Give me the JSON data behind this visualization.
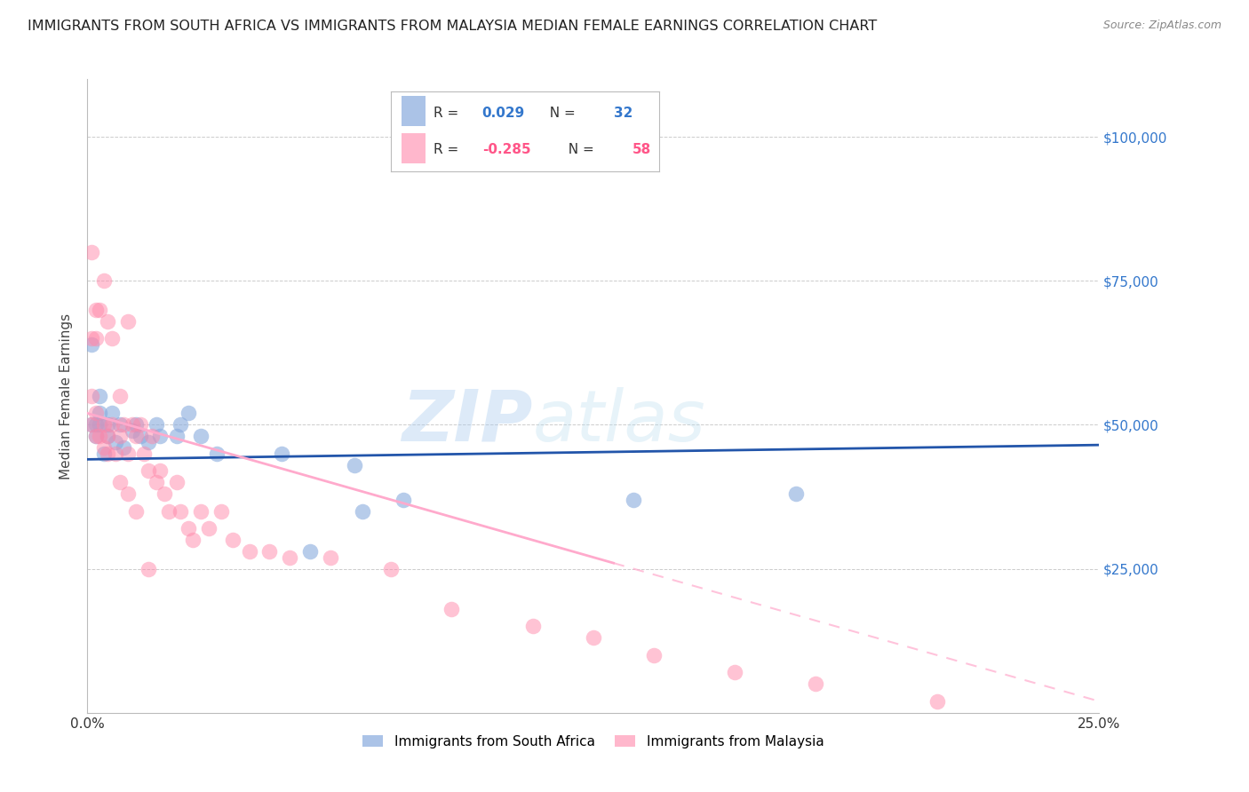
{
  "title": "IMMIGRANTS FROM SOUTH AFRICA VS IMMIGRANTS FROM MALAYSIA MEDIAN FEMALE EARNINGS CORRELATION CHART",
  "source": "Source: ZipAtlas.com",
  "ylabel": "Median Female Earnings",
  "yticks": [
    0,
    25000,
    50000,
    75000,
    100000
  ],
  "ytick_labels": [
    "",
    "$25,000",
    "$50,000",
    "$75,000",
    "$100,000"
  ],
  "xlim": [
    0.0,
    0.25
  ],
  "ylim": [
    0,
    110000
  ],
  "watermark_zip": "ZIP",
  "watermark_atlas": "atlas",
  "color_blue": "#88AADD",
  "color_pink": "#FF88AA",
  "color_trendline_blue": "#2255AA",
  "color_trendline_pink": "#FFAACC",
  "background_color": "#FFFFFF",
  "grid_color": "#CCCCCC",
  "title_fontsize": 11.5,
  "axis_label_fontsize": 11,
  "tick_fontsize": 11,
  "blue_r": "0.029",
  "blue_n": "32",
  "pink_r": "-0.285",
  "pink_n": "58",
  "blue_scatter_x": [
    0.001,
    0.001,
    0.002,
    0.002,
    0.003,
    0.003,
    0.003,
    0.004,
    0.005,
    0.005,
    0.006,
    0.007,
    0.008,
    0.009,
    0.011,
    0.012,
    0.013,
    0.015,
    0.017,
    0.018,
    0.022,
    0.023,
    0.025,
    0.028,
    0.032,
    0.048,
    0.055,
    0.066,
    0.068,
    0.078,
    0.135,
    0.175
  ],
  "blue_scatter_y": [
    50000,
    64000,
    50000,
    48000,
    50000,
    52000,
    55000,
    45000,
    48000,
    50000,
    52000,
    47000,
    50000,
    46000,
    49000,
    50000,
    48000,
    47000,
    50000,
    48000,
    48000,
    50000,
    52000,
    48000,
    45000,
    45000,
    28000,
    43000,
    35000,
    37000,
    37000,
    38000
  ],
  "pink_scatter_x": [
    0.001,
    0.001,
    0.001,
    0.002,
    0.002,
    0.002,
    0.003,
    0.003,
    0.004,
    0.004,
    0.005,
    0.005,
    0.006,
    0.006,
    0.007,
    0.008,
    0.008,
    0.009,
    0.01,
    0.01,
    0.011,
    0.012,
    0.013,
    0.014,
    0.015,
    0.016,
    0.017,
    0.018,
    0.019,
    0.02,
    0.022,
    0.023,
    0.025,
    0.026,
    0.028,
    0.03,
    0.033,
    0.036,
    0.04,
    0.045,
    0.05,
    0.06,
    0.075,
    0.09,
    0.11,
    0.125,
    0.14,
    0.16,
    0.18,
    0.21,
    0.001,
    0.002,
    0.004,
    0.005,
    0.008,
    0.01,
    0.012,
    0.015
  ],
  "pink_scatter_y": [
    80000,
    65000,
    50000,
    70000,
    65000,
    48000,
    70000,
    48000,
    75000,
    50000,
    68000,
    48000,
    65000,
    50000,
    45000,
    55000,
    48000,
    50000,
    68000,
    45000,
    50000,
    48000,
    50000,
    45000,
    42000,
    48000,
    40000,
    42000,
    38000,
    35000,
    40000,
    35000,
    32000,
    30000,
    35000,
    32000,
    35000,
    30000,
    28000,
    28000,
    27000,
    27000,
    25000,
    18000,
    15000,
    13000,
    10000,
    7000,
    5000,
    2000,
    55000,
    52000,
    46000,
    45000,
    40000,
    38000,
    35000,
    25000
  ]
}
